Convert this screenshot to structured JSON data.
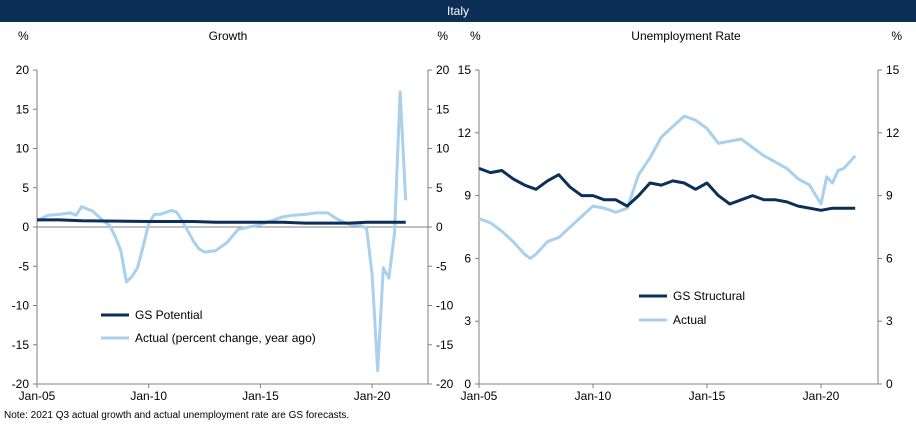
{
  "header": {
    "title": "Italy"
  },
  "note": "Note: 2021 Q3 actual growth and actual unemployment rate are GS forecasts.",
  "chart_data": [
    {
      "type": "line",
      "title": "Growth",
      "unit_left": "%",
      "unit_right": "%",
      "x_ticks": [
        "Jan-05",
        "Jan-10",
        "Jan-15",
        "Jan-20"
      ],
      "xlim": [
        2005,
        2022.5
      ],
      "ylim": [
        -20,
        20
      ],
      "y_ticks": [
        20,
        15,
        10,
        5,
        0,
        -5,
        -10,
        -15,
        -20
      ],
      "series": [
        {
          "name": "GS Potential",
          "color": "#0b2f57",
          "points": [
            [
              2005,
              0.9
            ],
            [
              2006,
              0.9
            ],
            [
              2007,
              0.8
            ],
            [
              2010,
              0.7
            ],
            [
              2012,
              0.7
            ],
            [
              2013,
              0.6
            ],
            [
              2016,
              0.6
            ],
            [
              2017,
              0.5
            ],
            [
              2019,
              0.5
            ],
            [
              2019.75,
              0.6
            ],
            [
              2021.5,
              0.6
            ]
          ]
        },
        {
          "name": "Actual (percent change, year ago)",
          "color": "#a9d0ee",
          "points": [
            [
              2005,
              0.8
            ],
            [
              2005.5,
              1.5
            ],
            [
              2006,
              1.6
            ],
            [
              2006.5,
              1.8
            ],
            [
              2006.75,
              1.5
            ],
            [
              2007,
              2.6
            ],
            [
              2007.5,
              2.0
            ],
            [
              2008,
              0.7
            ],
            [
              2008.25,
              0.2
            ],
            [
              2008.5,
              -1.2
            ],
            [
              2008.75,
              -3.0
            ],
            [
              2009,
              -7.0
            ],
            [
              2009.25,
              -6.3
            ],
            [
              2009.5,
              -5.2
            ],
            [
              2009.75,
              -2.5
            ],
            [
              2010,
              0.4
            ],
            [
              2010.25,
              1.6
            ],
            [
              2010.5,
              1.6
            ],
            [
              2011,
              2.1
            ],
            [
              2011.25,
              1.9
            ],
            [
              2011.5,
              0.8
            ],
            [
              2012,
              -1.8
            ],
            [
              2012.25,
              -2.8
            ],
            [
              2012.5,
              -3.2
            ],
            [
              2013,
              -3.0
            ],
            [
              2013.5,
              -2.0
            ],
            [
              2014,
              -0.3
            ],
            [
              2014.5,
              0.0
            ],
            [
              2015,
              0.3
            ],
            [
              2016,
              1.3
            ],
            [
              2016.5,
              1.5
            ],
            [
              2017,
              1.6
            ],
            [
              2017.5,
              1.8
            ],
            [
              2018,
              1.8
            ],
            [
              2018.5,
              0.9
            ],
            [
              2019,
              0.3
            ],
            [
              2019.5,
              0.2
            ],
            [
              2019.75,
              -0.2
            ],
            [
              2020,
              -6.0
            ],
            [
              2020.25,
              -18.3
            ],
            [
              2020.5,
              -5.2
            ],
            [
              2020.75,
              -6.5
            ],
            [
              2021,
              -0.8
            ],
            [
              2021.25,
              17.2
            ],
            [
              2021.5,
              3.4
            ]
          ]
        }
      ]
    },
    {
      "type": "line",
      "title": "Unemployment Rate",
      "unit_left": "%",
      "unit_right": "%",
      "x_ticks": [
        "Jan-05",
        "Jan-10",
        "Jan-15",
        "Jan-20"
      ],
      "xlim": [
        2005,
        2022.5
      ],
      "ylim": [
        0,
        15
      ],
      "y_ticks": [
        15,
        12,
        9,
        6,
        3,
        0
      ],
      "series": [
        {
          "name": "GS Structural",
          "color": "#0b2f57",
          "points": [
            [
              2005,
              10.3
            ],
            [
              2005.5,
              10.1
            ],
            [
              2006,
              10.2
            ],
            [
              2006.5,
              9.8
            ],
            [
              2007,
              9.5
            ],
            [
              2007.5,
              9.3
            ],
            [
              2008,
              9.7
            ],
            [
              2008.5,
              10.0
            ],
            [
              2009,
              9.4
            ],
            [
              2009.5,
              9.0
            ],
            [
              2010,
              9.0
            ],
            [
              2010.5,
              8.8
            ],
            [
              2011,
              8.8
            ],
            [
              2011.5,
              8.5
            ],
            [
              2012,
              9.0
            ],
            [
              2012.5,
              9.6
            ],
            [
              2013,
              9.5
            ],
            [
              2013.5,
              9.7
            ],
            [
              2014,
              9.6
            ],
            [
              2014.5,
              9.3
            ],
            [
              2015,
              9.6
            ],
            [
              2015.5,
              9.0
            ],
            [
              2016,
              8.6
            ],
            [
              2016.5,
              8.8
            ],
            [
              2017,
              9.0
            ],
            [
              2017.5,
              8.8
            ],
            [
              2018,
              8.8
            ],
            [
              2018.5,
              8.7
            ],
            [
              2019,
              8.5
            ],
            [
              2019.5,
              8.4
            ],
            [
              2020,
              8.3
            ],
            [
              2020.5,
              8.4
            ],
            [
              2021,
              8.4
            ],
            [
              2021.5,
              8.4
            ]
          ]
        },
        {
          "name": "Actual",
          "color": "#a9d0ee",
          "points": [
            [
              2005,
              7.9
            ],
            [
              2005.5,
              7.7
            ],
            [
              2006,
              7.3
            ],
            [
              2006.5,
              6.8
            ],
            [
              2007,
              6.2
            ],
            [
              2007.25,
              6.0
            ],
            [
              2007.5,
              6.2
            ],
            [
              2008,
              6.8
            ],
            [
              2008.5,
              7.0
            ],
            [
              2009,
              7.5
            ],
            [
              2009.5,
              8.0
            ],
            [
              2010,
              8.5
            ],
            [
              2010.5,
              8.4
            ],
            [
              2011,
              8.2
            ],
            [
              2011.5,
              8.4
            ],
            [
              2012,
              10.0
            ],
            [
              2012.5,
              10.8
            ],
            [
              2013,
              11.8
            ],
            [
              2013.5,
              12.3
            ],
            [
              2014,
              12.8
            ],
            [
              2014.5,
              12.6
            ],
            [
              2015,
              12.2
            ],
            [
              2015.5,
              11.5
            ],
            [
              2016,
              11.6
            ],
            [
              2016.5,
              11.7
            ],
            [
              2017,
              11.3
            ],
            [
              2017.5,
              10.9
            ],
            [
              2018,
              10.6
            ],
            [
              2018.5,
              10.3
            ],
            [
              2019,
              9.8
            ],
            [
              2019.5,
              9.5
            ],
            [
              2020,
              8.6
            ],
            [
              2020.25,
              9.9
            ],
            [
              2020.5,
              9.6
            ],
            [
              2020.75,
              10.2
            ],
            [
              2021,
              10.3
            ],
            [
              2021.5,
              10.9
            ]
          ]
        }
      ]
    }
  ]
}
